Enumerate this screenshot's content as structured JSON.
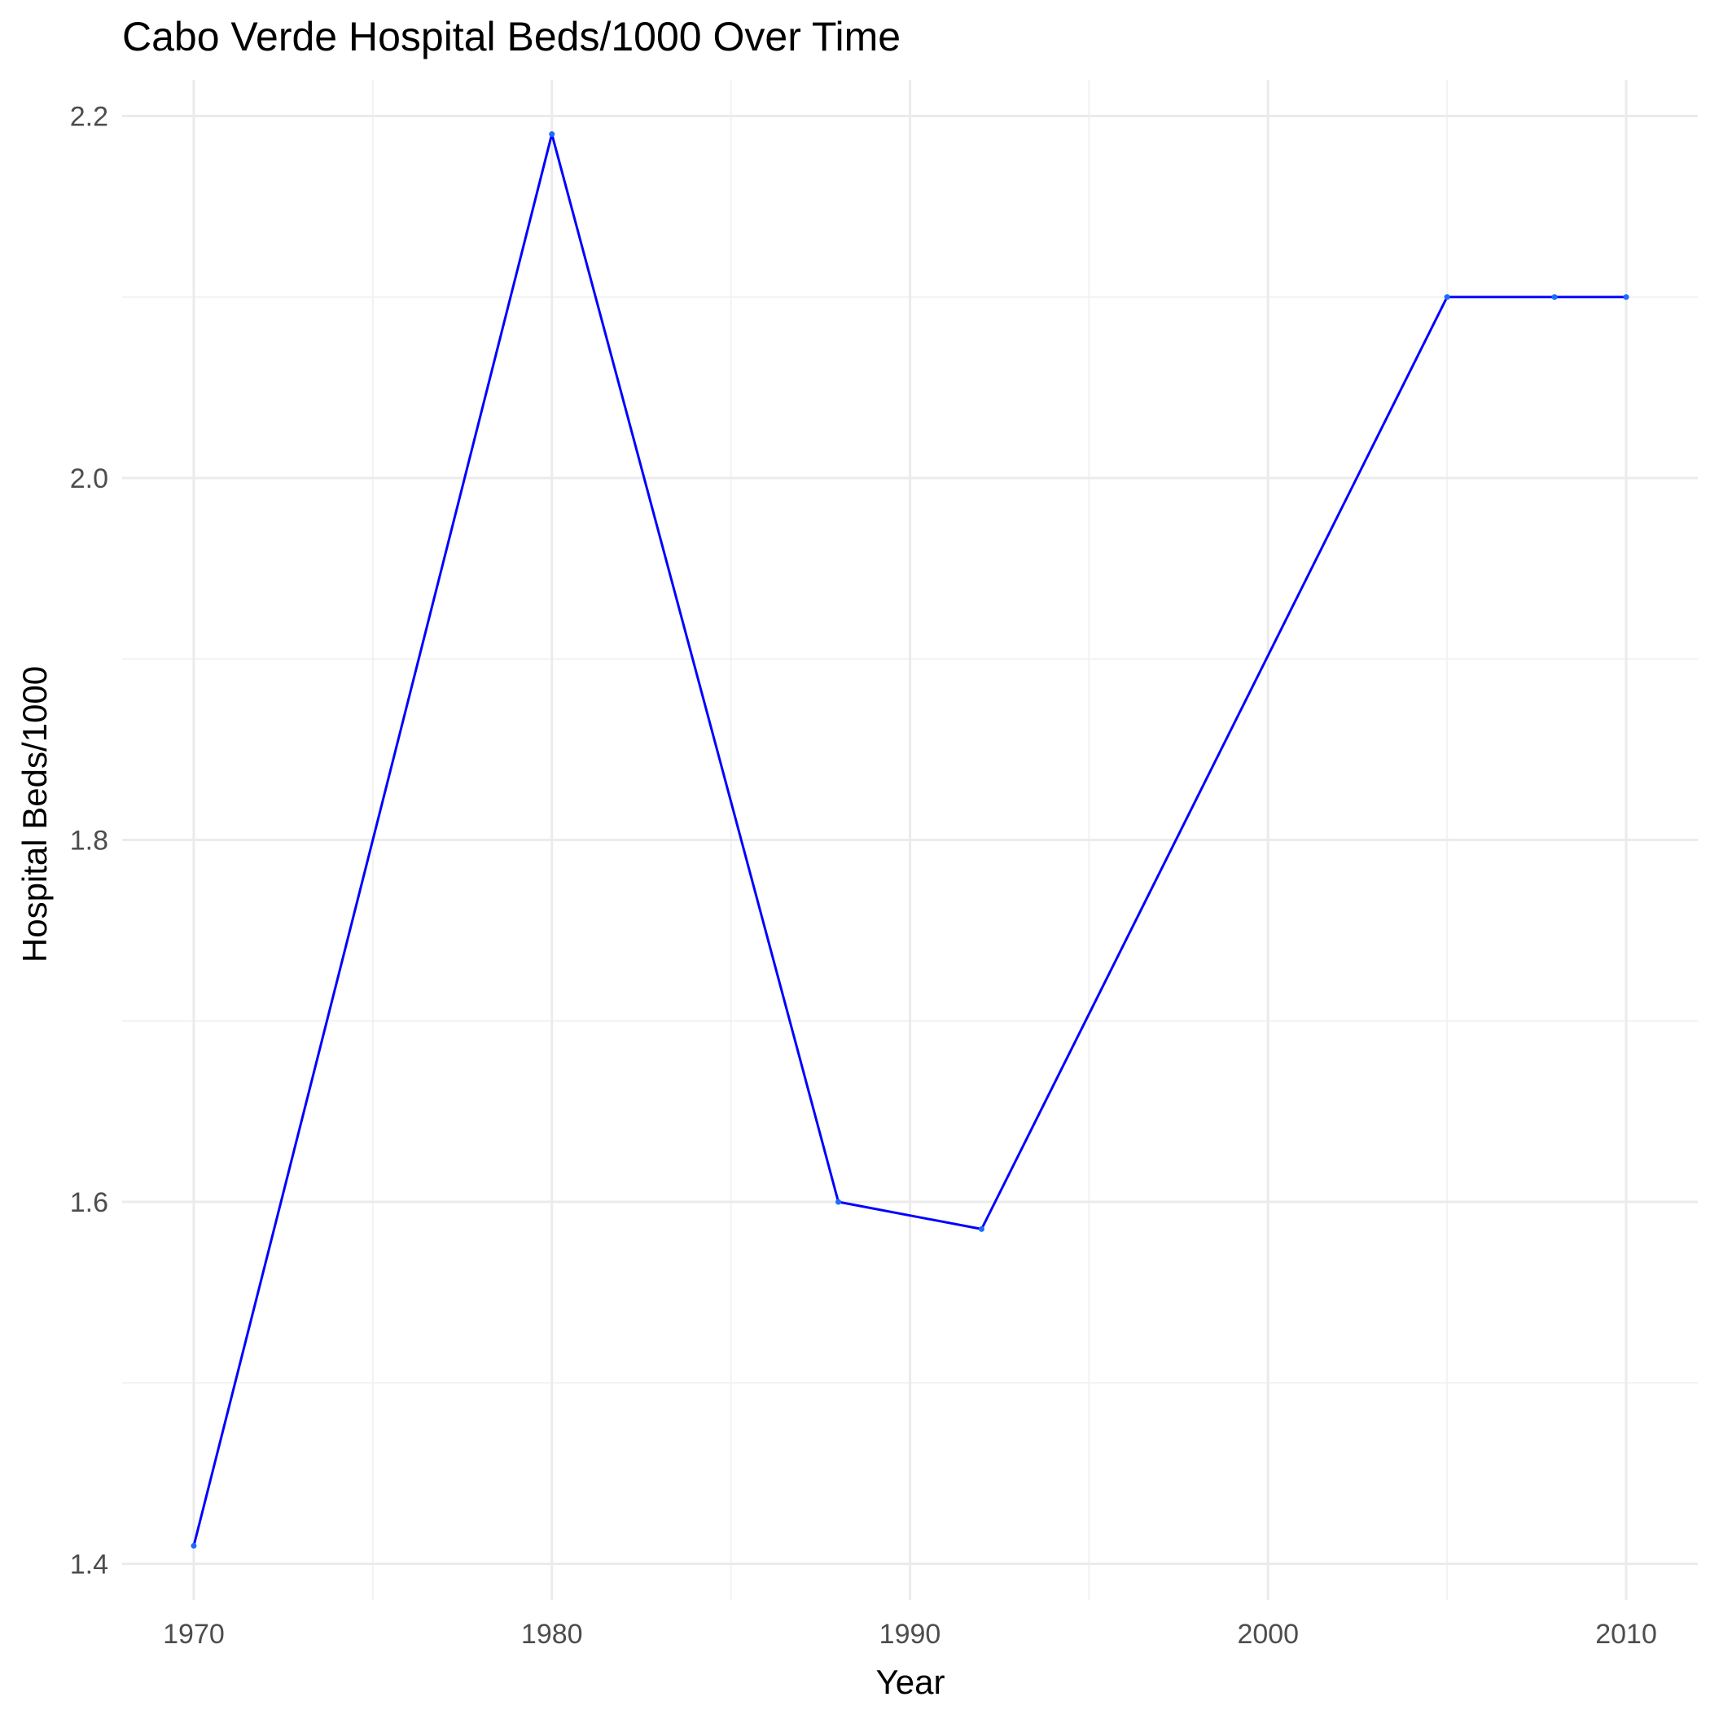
{
  "chart_data": {
    "type": "line",
    "title": "Cabo Verde Hospital Beds/1000 Over Time",
    "xlabel": "Year",
    "ylabel": "Hospital Beds/1000",
    "x": [
      1970,
      1980,
      1988,
      1992,
      2005,
      2008,
      2010
    ],
    "series": [
      {
        "values": [
          1.41,
          2.19,
          1.6,
          1.585,
          2.1,
          2.1,
          2.1
        ]
      }
    ],
    "xlim": [
      1968,
      2012
    ],
    "ylim": [
      1.38,
      2.22
    ],
    "x_ticks": [
      1970,
      1980,
      1990,
      2000,
      2010
    ],
    "x_tick_labels": [
      "1970",
      "1980",
      "1990",
      "2000",
      "2010"
    ],
    "y_ticks": [
      1.4,
      1.6,
      1.8,
      2.0,
      2.2
    ],
    "y_tick_labels": [
      "1.4",
      "1.6",
      "1.8",
      "2.0",
      "2.2"
    ],
    "x_minor_ticks": [
      1975,
      1985,
      1995,
      2005
    ],
    "y_minor_ticks": [
      1.5,
      1.7,
      1.9,
      2.1
    ],
    "grid": true,
    "legend": "none",
    "colors": {
      "line": "#0000ff",
      "point": "#1e6bff",
      "grid_major": "#ebebeb",
      "grid_minor": "#f2f2f2"
    }
  }
}
